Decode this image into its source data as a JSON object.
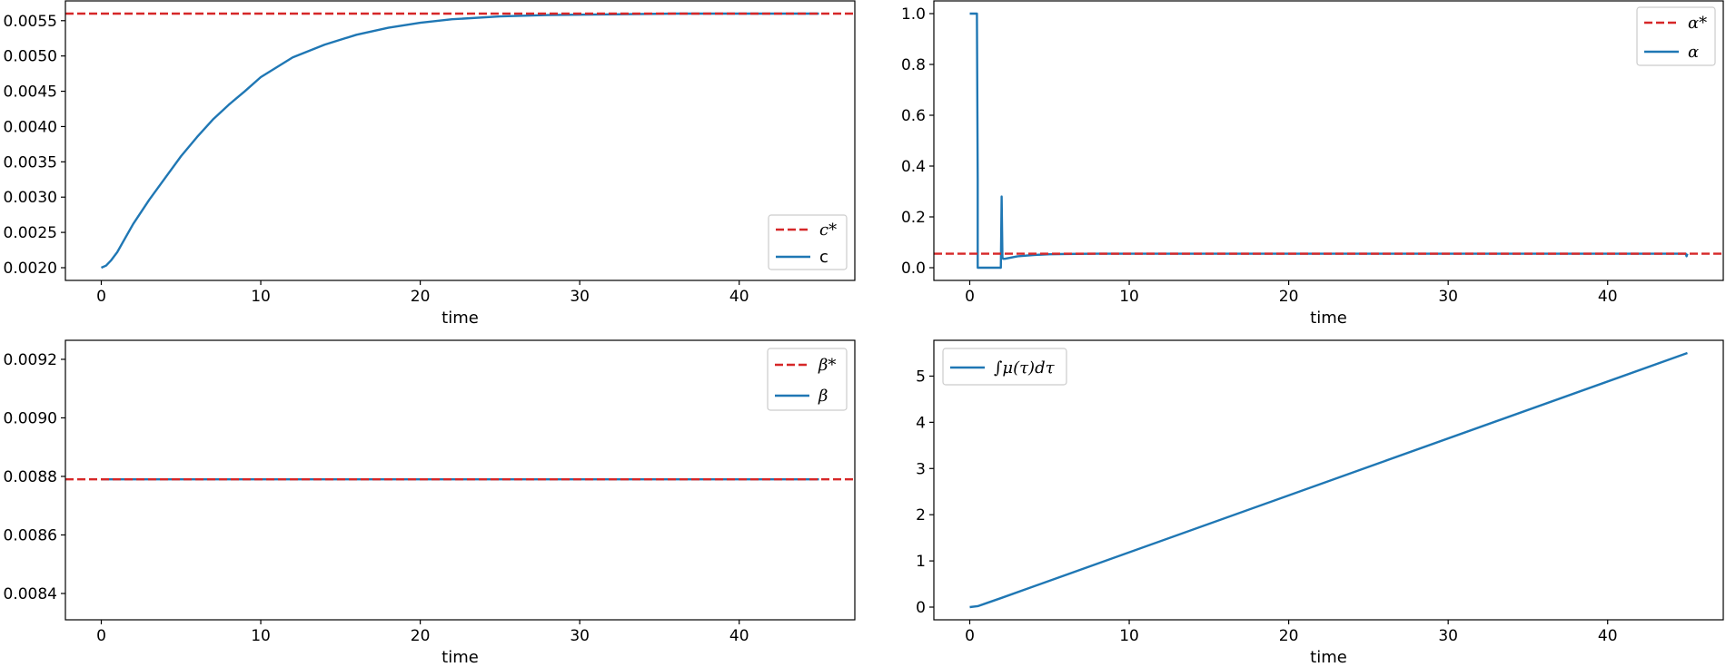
{
  "chart_data": [
    {
      "type": "line",
      "xlabel": "time",
      "ylabel": "",
      "xlim": [
        -2.25,
        47.25
      ],
      "ylim": [
        0.00182,
        0.00578
      ],
      "xticks": [
        0,
        10,
        20,
        30,
        40
      ],
      "xtick_labels": [
        "0",
        "10",
        "20",
        "30",
        "40"
      ],
      "yticks": [
        0.002,
        0.0025,
        0.003,
        0.0035,
        0.004,
        0.0045,
        0.005,
        0.0055
      ],
      "ytick_labels": [
        "0.0020",
        "0.0025",
        "0.0030",
        "0.0035",
        "0.0040",
        "0.0045",
        "0.0050",
        "0.0055"
      ],
      "legend_position": "lower-right",
      "series": [
        {
          "name": "c*",
          "style": "dashed",
          "color": "#d62728",
          "kind": "hline",
          "y": 0.0056
        },
        {
          "name": "c",
          "style": "solid",
          "color": "#1f77b4",
          "x": [
            0,
            0.3,
            0.6,
            1,
            1.5,
            2,
            3,
            4,
            5,
            6,
            7,
            8,
            9,
            10,
            12,
            14,
            16,
            18,
            20,
            22,
            25,
            28,
            32,
            36,
            40,
            45
          ],
          "y": [
            0.002,
            0.00203,
            0.0021,
            0.00222,
            0.00242,
            0.00262,
            0.00296,
            0.00327,
            0.00358,
            0.00385,
            0.0041,
            0.00431,
            0.0045,
            0.0047,
            0.00498,
            0.00516,
            0.0053,
            0.0054,
            0.00547,
            0.00552,
            0.00556,
            0.00558,
            0.00559,
            0.0056,
            0.0056,
            0.0056
          ]
        }
      ]
    },
    {
      "type": "line",
      "xlabel": "time",
      "ylabel": "",
      "xlim": [
        -2.25,
        47.25
      ],
      "ylim": [
        -0.05,
        1.05
      ],
      "xticks": [
        0,
        10,
        20,
        30,
        40
      ],
      "xtick_labels": [
        "0",
        "10",
        "20",
        "30",
        "40"
      ],
      "yticks": [
        0.0,
        0.2,
        0.4,
        0.6,
        0.8,
        1.0
      ],
      "ytick_labels": [
        "0.0",
        "0.2",
        "0.4",
        "0.6",
        "0.8",
        "1.0"
      ],
      "legend_position": "upper-right",
      "series": [
        {
          "name": "α*",
          "style": "dashed",
          "color": "#d62728",
          "kind": "hline",
          "y": 0.055
        },
        {
          "name": "α",
          "style": "solid",
          "color": "#1f77b4",
          "x": [
            0,
            0.45,
            0.5,
            0.5,
            1.95,
            2.0,
            2.05,
            2.1,
            2.2,
            3,
            4,
            5,
            6,
            8,
            10,
            20,
            30,
            44.9,
            44.95,
            45
          ],
          "y": [
            1.0,
            1.0,
            0.35,
            0.0,
            0.0,
            0.28,
            0.04,
            0.035,
            0.035,
            0.045,
            0.05,
            0.053,
            0.054,
            0.055,
            0.055,
            0.055,
            0.055,
            0.055,
            0.045,
            0.055
          ]
        }
      ]
    },
    {
      "type": "line",
      "xlabel": "time",
      "ylabel": "",
      "xlim": [
        -2.25,
        47.25
      ],
      "ylim": [
        0.00831,
        0.009265
      ],
      "xticks": [
        0,
        10,
        20,
        30,
        40
      ],
      "xtick_labels": [
        "0",
        "10",
        "20",
        "30",
        "40"
      ],
      "yticks": [
        0.0084,
        0.0086,
        0.0088,
        0.009,
        0.0092
      ],
      "ytick_labels": [
        "0.0084",
        "0.0086",
        "0.0088",
        "0.0090",
        "0.0092"
      ],
      "legend_position": "upper-right",
      "series": [
        {
          "name": "β*",
          "style": "dashed",
          "color": "#d62728",
          "kind": "hline",
          "y": 0.00879
        },
        {
          "name": "β",
          "style": "solid",
          "color": "#1f77b4",
          "x": [
            0,
            45
          ],
          "y": [
            0.00879,
            0.00879
          ]
        }
      ]
    },
    {
      "type": "line",
      "xlabel": "time",
      "ylabel": "",
      "xlim": [
        -2.25,
        47.25
      ],
      "ylim": [
        -0.275,
        5.775
      ],
      "xticks": [
        0,
        10,
        20,
        30,
        40
      ],
      "xtick_labels": [
        "0",
        "10",
        "20",
        "30",
        "40"
      ],
      "yticks": [
        0,
        1,
        2,
        3,
        4,
        5
      ],
      "ytick_labels": [
        "0",
        "1",
        "2",
        "3",
        "4",
        "5"
      ],
      "legend_position": "upper-left",
      "series": [
        {
          "name": "∫μ(τ)dτ",
          "style": "solid",
          "color": "#1f77b4",
          "x": [
            0,
            0.5,
            1,
            2,
            45
          ],
          "y": [
            0,
            0.02,
            0.08,
            0.2,
            5.5
          ]
        }
      ]
    }
  ]
}
